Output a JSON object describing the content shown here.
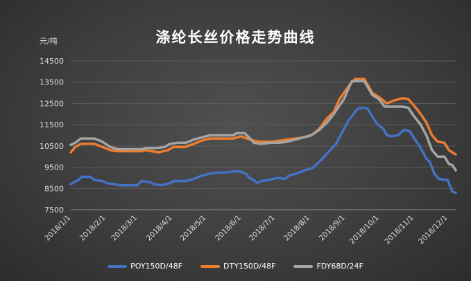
{
  "chart_data": {
    "type": "line",
    "title": "涤纶长丝价格走势曲线",
    "ylabel": "元/吨",
    "ylim": [
      7500,
      14500
    ],
    "yticks": [
      7500,
      8500,
      9500,
      10500,
      11500,
      12500,
      13500,
      14500
    ],
    "xlim": [
      "2018-01-01",
      "2018-12-08"
    ],
    "xticks": [
      "2018/1/1",
      "2018/2/1",
      "2018/3/1",
      "2018/4/1",
      "2018/5/1",
      "2018/6/1",
      "2018/7/1",
      "2018/8/1",
      "2018/9/1",
      "2018/10/1",
      "2018/11/1",
      "2018/12/1"
    ],
    "grid": true,
    "legend": "bottom",
    "series": [
      {
        "name": "POY150D/48F",
        "color": "#4472c4",
        "points": [
          [
            "2018-01-01",
            8700
          ],
          [
            "2018-01-04",
            8800
          ],
          [
            "2018-01-08",
            8900
          ],
          [
            "2018-01-11",
            9050
          ],
          [
            "2018-01-18",
            9050
          ],
          [
            "2018-01-22",
            8900
          ],
          [
            "2018-01-29",
            8850
          ],
          [
            "2018-02-02",
            8750
          ],
          [
            "2018-02-09",
            8700
          ],
          [
            "2018-02-13",
            8650
          ],
          [
            "2018-03-01",
            8650
          ],
          [
            "2018-03-05",
            8850
          ],
          [
            "2018-03-12",
            8800
          ],
          [
            "2018-03-16",
            8700
          ],
          [
            "2018-03-22",
            8650
          ],
          [
            "2018-03-30",
            8750
          ],
          [
            "2018-04-02",
            8850
          ],
          [
            "2018-04-13",
            8850
          ],
          [
            "2018-04-20",
            8950
          ],
          [
            "2018-04-27",
            9100
          ],
          [
            "2018-05-04",
            9200
          ],
          [
            "2018-05-11",
            9250
          ],
          [
            "2018-05-18",
            9250
          ],
          [
            "2018-05-25",
            9300
          ],
          [
            "2018-05-31",
            9300
          ],
          [
            "2018-06-05",
            9200
          ],
          [
            "2018-06-08",
            9000
          ],
          [
            "2018-06-12",
            8900
          ],
          [
            "2018-06-15",
            8750
          ],
          [
            "2018-06-19",
            8850
          ],
          [
            "2018-06-26",
            8900
          ],
          [
            "2018-07-03",
            9000
          ],
          [
            "2018-07-10",
            8950
          ],
          [
            "2018-07-13",
            9100
          ],
          [
            "2018-07-20",
            9200
          ],
          [
            "2018-07-27",
            9350
          ],
          [
            "2018-08-03",
            9450
          ],
          [
            "2018-08-10",
            9800
          ],
          [
            "2018-08-17",
            10200
          ],
          [
            "2018-08-24",
            10600
          ],
          [
            "2018-08-28",
            11000
          ],
          [
            "2018-08-31",
            11300
          ],
          [
            "2018-09-04",
            11700
          ],
          [
            "2018-09-07",
            11900
          ],
          [
            "2018-09-12",
            12250
          ],
          [
            "2018-09-17",
            12300
          ],
          [
            "2018-09-21",
            12250
          ],
          [
            "2018-09-26",
            11800
          ],
          [
            "2018-09-30",
            11500
          ],
          [
            "2018-10-05",
            11300
          ],
          [
            "2018-10-08",
            11000
          ],
          [
            "2018-10-12",
            10950
          ],
          [
            "2018-10-18",
            11000
          ],
          [
            "2018-10-23",
            11250
          ],
          [
            "2018-10-28",
            11200
          ],
          [
            "2018-11-02",
            10800
          ],
          [
            "2018-11-07",
            10400
          ],
          [
            "2018-11-12",
            9900
          ],
          [
            "2018-11-15",
            9750
          ],
          [
            "2018-11-19",
            9200
          ],
          [
            "2018-11-23",
            8950
          ],
          [
            "2018-11-28",
            8900
          ],
          [
            "2018-12-01",
            8900
          ],
          [
            "2018-12-03",
            8600
          ],
          [
            "2018-12-05",
            8350
          ],
          [
            "2018-12-08",
            8300
          ]
        ]
      },
      {
        "name": "DTY150D/48F",
        "color": "#ed7d31",
        "points": [
          [
            "2018-01-01",
            10200
          ],
          [
            "2018-01-05",
            10450
          ],
          [
            "2018-01-10",
            10600
          ],
          [
            "2018-01-22",
            10600
          ],
          [
            "2018-01-29",
            10450
          ],
          [
            "2018-02-05",
            10300
          ],
          [
            "2018-02-12",
            10250
          ],
          [
            "2018-03-05",
            10250
          ],
          [
            "2018-03-08",
            10300
          ],
          [
            "2018-03-14",
            10250
          ],
          [
            "2018-03-20",
            10200
          ],
          [
            "2018-03-28",
            10300
          ],
          [
            "2018-04-02",
            10450
          ],
          [
            "2018-04-12",
            10450
          ],
          [
            "2018-04-20",
            10600
          ],
          [
            "2018-04-27",
            10750
          ],
          [
            "2018-05-04",
            10850
          ],
          [
            "2018-05-25",
            10850
          ],
          [
            "2018-06-01",
            10950
          ],
          [
            "2018-06-06",
            10850
          ],
          [
            "2018-06-12",
            10750
          ],
          [
            "2018-06-18",
            10700
          ],
          [
            "2018-06-28",
            10700
          ],
          [
            "2018-07-05",
            10750
          ],
          [
            "2018-07-12",
            10800
          ],
          [
            "2018-07-19",
            10850
          ],
          [
            "2018-07-26",
            10900
          ],
          [
            "2018-08-02",
            11000
          ],
          [
            "2018-08-09",
            11300
          ],
          [
            "2018-08-16",
            11800
          ],
          [
            "2018-08-22",
            12100
          ],
          [
            "2018-08-27",
            12700
          ],
          [
            "2018-08-31",
            13000
          ],
          [
            "2018-09-04",
            13300
          ],
          [
            "2018-09-07",
            13500
          ],
          [
            "2018-09-10",
            13650
          ],
          [
            "2018-09-18",
            13650
          ],
          [
            "2018-09-25",
            13000
          ],
          [
            "2018-10-01",
            12800
          ],
          [
            "2018-10-08",
            12500
          ],
          [
            "2018-10-15",
            12650
          ],
          [
            "2018-10-22",
            12750
          ],
          [
            "2018-10-27",
            12700
          ],
          [
            "2018-11-01",
            12400
          ],
          [
            "2018-11-07",
            12000
          ],
          [
            "2018-11-12",
            11600
          ],
          [
            "2018-11-17",
            11000
          ],
          [
            "2018-11-22",
            10700
          ],
          [
            "2018-11-28",
            10650
          ],
          [
            "2018-12-02",
            10300
          ],
          [
            "2018-12-05",
            10200
          ],
          [
            "2018-12-08",
            10100
          ]
        ]
      },
      {
        "name": "FDY68D/24F",
        "color": "#a5a5a5",
        "points": [
          [
            "2018-01-01",
            10550
          ],
          [
            "2018-01-05",
            10650
          ],
          [
            "2018-01-10",
            10850
          ],
          [
            "2018-01-22",
            10850
          ],
          [
            "2018-01-29",
            10700
          ],
          [
            "2018-02-05",
            10450
          ],
          [
            "2018-02-12",
            10350
          ],
          [
            "2018-03-05",
            10350
          ],
          [
            "2018-03-08",
            10400
          ],
          [
            "2018-03-18",
            10400
          ],
          [
            "2018-03-25",
            10450
          ],
          [
            "2018-03-30",
            10600
          ],
          [
            "2018-04-06",
            10650
          ],
          [
            "2018-04-13",
            10650
          ],
          [
            "2018-04-20",
            10800
          ],
          [
            "2018-04-27",
            10900
          ],
          [
            "2018-05-04",
            11000
          ],
          [
            "2018-05-25",
            11000
          ],
          [
            "2018-05-28",
            11100
          ],
          [
            "2018-06-04",
            11100
          ],
          [
            "2018-06-08",
            10900
          ],
          [
            "2018-06-12",
            10650
          ],
          [
            "2018-06-18",
            10600
          ],
          [
            "2018-06-28",
            10650
          ],
          [
            "2018-07-05",
            10650
          ],
          [
            "2018-07-12",
            10700
          ],
          [
            "2018-07-19",
            10800
          ],
          [
            "2018-07-26",
            10900
          ],
          [
            "2018-08-02",
            11000
          ],
          [
            "2018-08-09",
            11250
          ],
          [
            "2018-08-16",
            11600
          ],
          [
            "2018-08-22",
            12000
          ],
          [
            "2018-08-27",
            12400
          ],
          [
            "2018-08-31",
            12700
          ],
          [
            "2018-09-04",
            13200
          ],
          [
            "2018-09-07",
            13550
          ],
          [
            "2018-09-18",
            13550
          ],
          [
            "2018-09-25",
            12900
          ],
          [
            "2018-10-01",
            12700
          ],
          [
            "2018-10-06",
            12350
          ],
          [
            "2018-10-22",
            12350
          ],
          [
            "2018-10-27",
            12300
          ],
          [
            "2018-11-01",
            11900
          ],
          [
            "2018-11-07",
            11500
          ],
          [
            "2018-11-12",
            11000
          ],
          [
            "2018-11-17",
            10300
          ],
          [
            "2018-11-22",
            10000
          ],
          [
            "2018-11-28",
            10000
          ],
          [
            "2018-12-02",
            9650
          ],
          [
            "2018-12-05",
            9600
          ],
          [
            "2018-12-08",
            9350
          ]
        ]
      }
    ]
  }
}
